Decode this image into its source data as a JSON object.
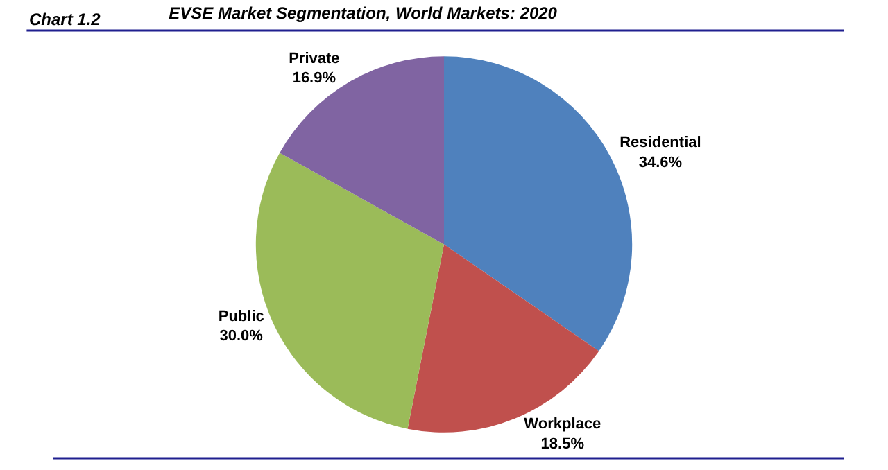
{
  "chart_data": {
    "type": "pie",
    "title": "EVSE Market Segmentation, World Markets: 2020",
    "annotations": [
      "Chart 1.2"
    ],
    "categories": [
      "Residential",
      "Workplace",
      "Public",
      "Private"
    ],
    "values": [
      34.6,
      18.5,
      30.0,
      16.9
    ],
    "value_labels": [
      "34.6%",
      "18.5%",
      "30.0%",
      "16.9%"
    ],
    "colors": [
      "#4f81bd",
      "#c0504d",
      "#9bbb59",
      "#8064a2"
    ],
    "legend": false
  }
}
